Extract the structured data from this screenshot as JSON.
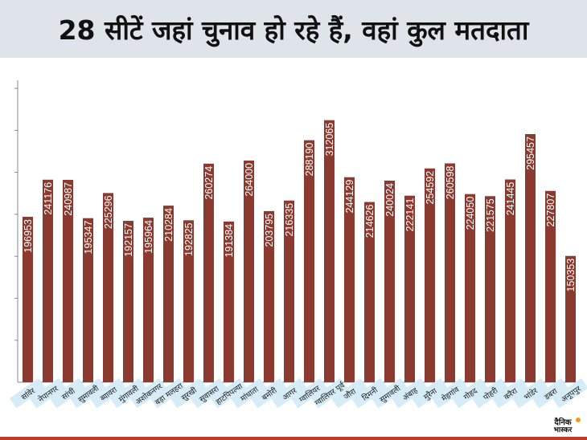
{
  "header": {
    "title": "28 सीटें जहां चुनाव हो रहे हैं, वहां कुल मतदाता"
  },
  "logo": {
    "line1": "दैनिक",
    "line2": "भास्कर",
    "dot_color": "#f39c12"
  },
  "colors": {
    "bar": "#8b3a2f",
    "label_bg": "#d6ecf7",
    "axis": "#888888",
    "title_bg": "#dfe3ea",
    "rule": "#c0392b"
  },
  "chart_data": {
    "type": "bar",
    "title": "28 सीटें जहां चुनाव हो रहे हैं, वहां कुल मतदाता",
    "xlabel": "",
    "ylabel": "",
    "ylim": [
      0,
      350000
    ],
    "grid": false,
    "categories": [
      "सांवेर",
      "नेपानगर",
      "सांची",
      "सुमावली",
      "ब्यावरा",
      "मुंगावली",
      "अशोकनगर",
      "बड़ा मलहरा",
      "सुरखी",
      "सुवासरा",
      "हाटपिपल्या",
      "मांधाता",
      "बमोरी",
      "आगर",
      "ग्वालियर",
      "ग्वालियर पूर्व",
      "जौरा",
      "दिमनी",
      "सुमावली",
      "अंबाह",
      "मुरैना",
      "मेहगांव",
      "गोहद",
      "पोहरी",
      "करैरा",
      "भांडेर",
      "डबरा",
      "अनूपपुर"
    ],
    "values": [
      196953,
      241176,
      240987,
      195347,
      225296,
      192157,
      195964,
      210284,
      192825,
      260274,
      191384,
      264000,
      203795,
      216335,
      288190,
      312065,
      244129,
      214626,
      240024,
      222141,
      254592,
      260598,
      224050,
      221575,
      241445,
      295457,
      227807,
      150353
    ]
  }
}
